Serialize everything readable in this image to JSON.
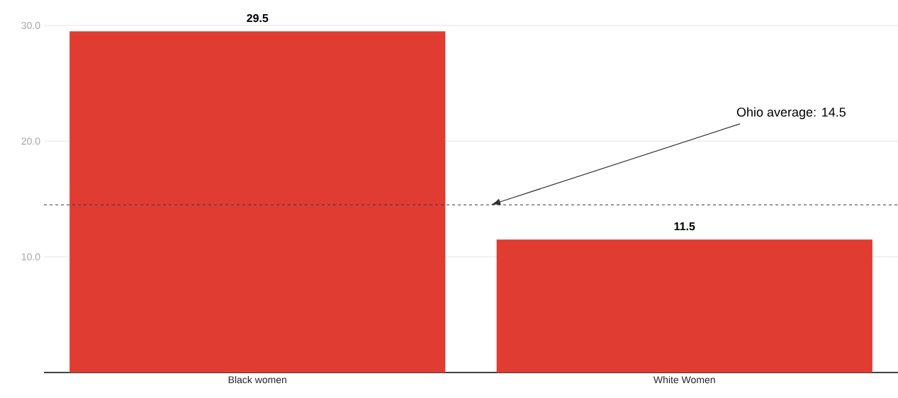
{
  "chart_data": {
    "type": "bar",
    "categories": [
      "Black women",
      "White Women"
    ],
    "values": [
      29.5,
      11.5
    ],
    "color": "#e03c31",
    "ylim": [
      0,
      30
    ],
    "yticks": [
      {
        "value": 10,
        "label": "10.0"
      },
      {
        "value": 20,
        "label": "20.0"
      },
      {
        "value": 30,
        "label": "30.0"
      }
    ],
    "grid": "y",
    "data_labels": true,
    "ref_lines": [
      {
        "axis": "y",
        "value": 14.5,
        "label": "Ohio average: 14.5",
        "color": "#1f3b5c",
        "line_style": "dashed"
      }
    ]
  }
}
